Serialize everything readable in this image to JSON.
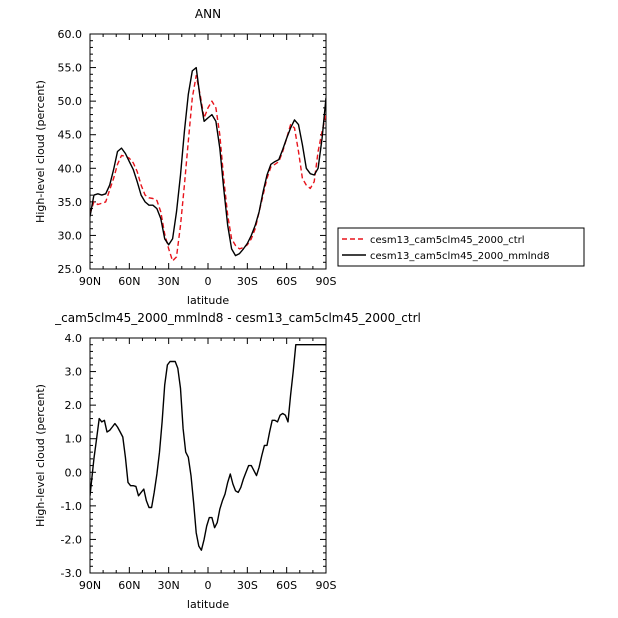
{
  "chart_data": [
    {
      "type": "line",
      "title": "ANN",
      "xlabel": "latitude",
      "ylabel": "High-level cloud (percent)",
      "x_ticks": [
        "90N",
        "60N",
        "30N",
        "0",
        "30S",
        "60S",
        "90S"
      ],
      "x_tick_values": [
        90,
        60,
        30,
        0,
        -30,
        -60,
        -90
      ],
      "xlim": [
        90,
        -90
      ],
      "ylim": [
        25.0,
        60.0
      ],
      "y_ticks": [
        "25.0",
        "30.0",
        "35.0",
        "40.0",
        "45.0",
        "50.0",
        "55.0",
        "60.0"
      ],
      "y_tick_values": [
        25,
        30,
        35,
        40,
        45,
        50,
        55,
        60
      ],
      "grid": false,
      "legend_position": "right",
      "series": [
        {
          "name": "cesm13_cam5clm45_2000_ctrl",
          "color": "#e8141c",
          "dash": "dashed",
          "x": [
            90,
            87,
            84,
            81,
            78,
            75,
            72,
            69,
            66,
            63,
            60,
            57,
            54,
            51,
            48,
            45,
            42,
            39,
            36,
            33,
            30,
            27,
            24,
            21,
            18,
            15,
            12,
            9,
            6,
            3,
            0,
            -3,
            -6,
            -9,
            -12,
            -15,
            -18,
            -21,
            -24,
            -27,
            -30,
            -33,
            -36,
            -39,
            -42,
            -45,
            -48,
            -51,
            -54,
            -57,
            -60,
            -63,
            -66,
            -69,
            -72,
            -75,
            -78,
            -81,
            -84,
            -87,
            -90
          ],
          "y": [
            33.2,
            35.0,
            34.6,
            34.8,
            35.0,
            36.8,
            38.5,
            40.6,
            41.9,
            41.8,
            41.5,
            40.8,
            39.5,
            37.5,
            36.0,
            35.6,
            35.5,
            35.2,
            33.5,
            30.2,
            28.0,
            26.2,
            26.8,
            31.5,
            37.5,
            44.0,
            50.5,
            53.8,
            51.0,
            47.5,
            49.0,
            50.0,
            49.0,
            45.0,
            38.5,
            33.0,
            29.5,
            28.5,
            28.0,
            28.2,
            28.6,
            29.5,
            31.0,
            33.5,
            36.0,
            38.5,
            40.2,
            40.6,
            41.0,
            42.5,
            44.5,
            46.5,
            46.0,
            42.5,
            38.5,
            37.5,
            37.0,
            38.0,
            42.5,
            45.5,
            48.0
          ]
        },
        {
          "name": "cesm13_cam5clm45_2000_mmlnd8",
          "color": "#000000",
          "dash": "solid",
          "x": [
            90,
            87,
            84,
            81,
            78,
            75,
            72,
            69,
            66,
            63,
            60,
            57,
            54,
            51,
            48,
            45,
            42,
            39,
            36,
            33,
            30,
            27,
            24,
            21,
            18,
            15,
            12,
            9,
            6,
            3,
            0,
            -3,
            -6,
            -9,
            -12,
            -15,
            -18,
            -21,
            -24,
            -27,
            -30,
            -33,
            -36,
            -39,
            -42,
            -45,
            -48,
            -51,
            -54,
            -57,
            -60,
            -63,
            -66,
            -69,
            -72,
            -75,
            -78,
            -81,
            -84,
            -87,
            -90
          ],
          "y": [
            32.8,
            36.0,
            36.2,
            36.0,
            36.2,
            37.5,
            39.8,
            42.5,
            43.0,
            42.2,
            41.0,
            39.8,
            38.0,
            36.0,
            35.0,
            34.5,
            34.5,
            34.0,
            32.5,
            29.5,
            28.6,
            29.5,
            33.5,
            39.0,
            45.5,
            51.0,
            54.5,
            55.0,
            50.5,
            47.0,
            47.5,
            48.0,
            47.0,
            43.0,
            37.0,
            31.5,
            28.0,
            27.0,
            27.3,
            28.0,
            28.8,
            30.0,
            31.5,
            33.5,
            36.5,
            39.0,
            40.6,
            41.0,
            41.3,
            42.8,
            44.5,
            46.0,
            47.2,
            46.5,
            43.5,
            40.0,
            39.2,
            39.0,
            40.0,
            44.5,
            50.5
          ]
        }
      ]
    },
    {
      "type": "line",
      "title": "_cam5clm45_2000_mmlnd8 - cesm13_cam5clm45_2000_ctrl",
      "xlabel": "latitude",
      "ylabel": "High-level cloud (percent)",
      "x_ticks": [
        "90N",
        "60N",
        "30N",
        "0",
        "30S",
        "60S",
        "90S"
      ],
      "x_tick_values": [
        90,
        60,
        30,
        0,
        -30,
        -60,
        -90
      ],
      "xlim": [
        90,
        -90
      ],
      "ylim": [
        -3.0,
        4.0
      ],
      "y_ticks": [
        "-3.0",
        "-2.0",
        "-1.0",
        "0.0",
        "1.0",
        "2.0",
        "3.0",
        "4.0"
      ],
      "y_tick_values": [
        -3,
        -2,
        -1,
        0,
        1,
        2,
        3,
        4
      ],
      "grid": false,
      "series": [
        {
          "name": "",
          "color": "#000000",
          "dash": "solid",
          "x": [
            90,
            87,
            85,
            83,
            81,
            79,
            77,
            75,
            73,
            71,
            69,
            67,
            65,
            63,
            61,
            59,
            57,
            55,
            53,
            51,
            49,
            47,
            45,
            43,
            41,
            39,
            37,
            35,
            33,
            31,
            29,
            27,
            25,
            23,
            21,
            19,
            17,
            15,
            13,
            11,
            9,
            7,
            5,
            3,
            1,
            -1,
            -3,
            -5,
            -7,
            -9,
            -11,
            -13,
            -15,
            -17,
            -19,
            -21,
            -23,
            -25,
            -27,
            -29,
            -31,
            -33,
            -35,
            -37,
            -39,
            -41,
            -43,
            -45,
            -47,
            -49,
            -51,
            -53,
            -55,
            -57,
            -59,
            -61,
            -63,
            -65,
            -67,
            -69,
            -71,
            -73,
            -75,
            -77,
            -79,
            -81,
            -83,
            -85,
            -87,
            -90
          ],
          "y": [
            -0.7,
            0.4,
            1.0,
            1.6,
            1.5,
            1.55,
            1.2,
            1.25,
            1.35,
            1.45,
            1.35,
            1.2,
            1.05,
            0.45,
            -0.3,
            -0.4,
            -0.4,
            -0.42,
            -0.7,
            -0.6,
            -0.5,
            -0.85,
            -1.05,
            -1.05,
            -0.6,
            -0.05,
            0.6,
            1.5,
            2.6,
            3.2,
            3.3,
            3.3,
            3.3,
            3.1,
            2.5,
            1.3,
            0.6,
            0.45,
            -0.1,
            -0.9,
            -1.8,
            -2.2,
            -2.32,
            -2.0,
            -1.6,
            -1.35,
            -1.35,
            -1.65,
            -1.5,
            -1.1,
            -0.85,
            -0.65,
            -0.3,
            -0.05,
            -0.35,
            -0.55,
            -0.6,
            -0.45,
            -0.2,
            0.0,
            0.2,
            0.2,
            0.05,
            -0.1,
            0.15,
            0.5,
            0.8,
            0.8,
            1.2,
            1.55,
            1.55,
            1.5,
            1.7,
            1.75,
            1.7,
            1.5,
            2.3,
            3.0,
            3.8,
            3.8,
            3.8,
            3.8,
            3.8,
            3.8,
            3.8,
            3.8,
            3.8,
            3.8,
            3.8,
            3.8
          ]
        }
      ]
    }
  ]
}
